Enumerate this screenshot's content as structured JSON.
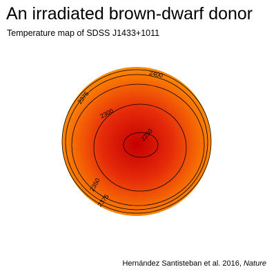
{
  "header": {
    "title": "An irradiated brown-dwarf donor",
    "subtitle": "Temperature map of SDSS J1433+1011"
  },
  "footer": {
    "credit_authors": "Hernández Santisteban et al. 2016, ",
    "credit_journal": "Nature"
  },
  "chart_data": {
    "type": "heatmap",
    "title": "An irradiated brown-dwarf donor",
    "subtitle": "Temperature map of SDSS J1433+1011",
    "quantity": "temperature",
    "colormap": {
      "hot": "#c40000",
      "mid": "#e52a0a",
      "cool": "#ff8c00"
    },
    "contours": [
      {
        "level": 2250,
        "label": "2250"
      },
      {
        "level": 2300,
        "label": "2300"
      },
      {
        "level": 2350,
        "label": "2350"
      },
      {
        "level": 2375,
        "label": "2375"
      },
      {
        "level": 2400,
        "label": "2400"
      }
    ],
    "contour_labels_shown": [
      {
        "text": "2400"
      },
      {
        "text": "2375"
      },
      {
        "text": "2300"
      },
      {
        "text": "2250"
      },
      {
        "text": "2350"
      },
      {
        "text": "2375"
      }
    ]
  }
}
